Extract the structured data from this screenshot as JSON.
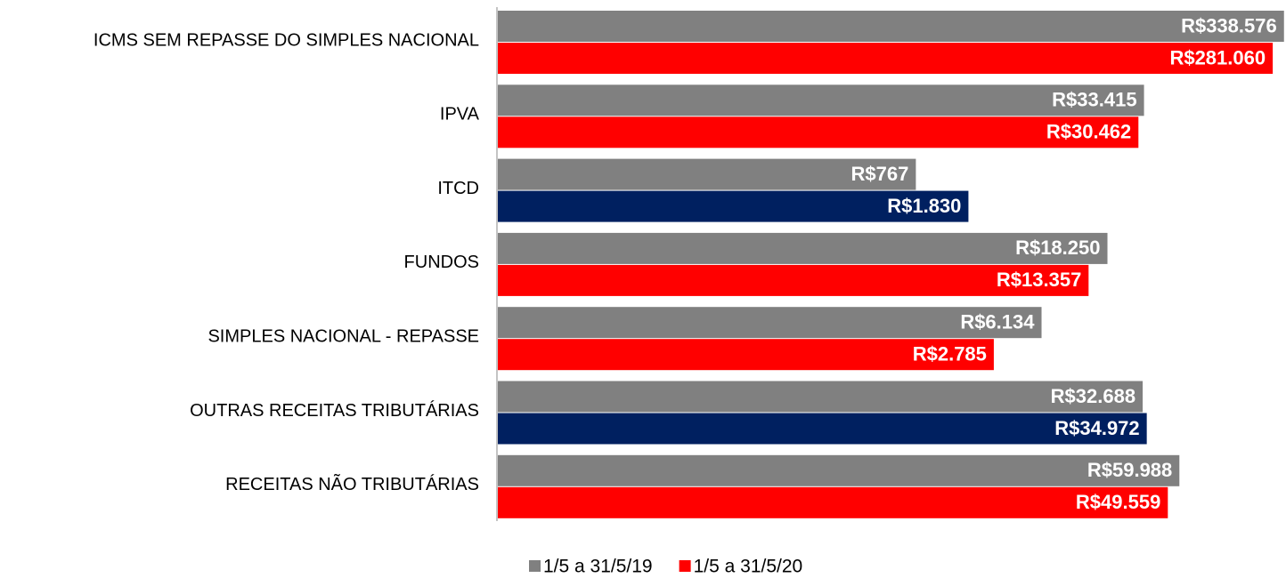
{
  "chart_data": {
    "type": "bar",
    "orientation": "horizontal",
    "log_scale": true,
    "categories": [
      "ICMS SEM REPASSE DO SIMPLES NACIONAL",
      "IPVA",
      "ITCD",
      "FUNDOS",
      "SIMPLES NACIONAL - REPASSE",
      "OUTRAS RECEITAS TRIBUTÁRIAS",
      "RECEITAS NÃO TRIBUTÁRIAS"
    ],
    "series": [
      {
        "name": "1/5 a 31/5/19",
        "color": "#808080",
        "values": [
          338576,
          33415,
          767,
          18250,
          6134,
          32688,
          59988
        ],
        "value_labels": [
          "R$338.576",
          "R$33.415",
          "R$767",
          "R$18.250",
          "R$6.134",
          "R$32.688",
          "R$59.988"
        ]
      },
      {
        "name": "1/5 a 31/5/20",
        "color": "#ff0000",
        "point_colors": [
          "#ff0000",
          "#ff0000",
          "#002060",
          "#ff0000",
          "#ff0000",
          "#002060",
          "#ff0000"
        ],
        "values": [
          281060,
          30462,
          1830,
          13357,
          2785,
          34972,
          49559
        ],
        "value_labels": [
          "R$281.060",
          "R$30.462",
          "R$1.830",
          "R$13.357",
          "R$2.785",
          "R$34.972",
          "R$49.559"
        ]
      }
    ],
    "xlim": [
      0.75,
      350000
    ],
    "legend": "bottom"
  }
}
